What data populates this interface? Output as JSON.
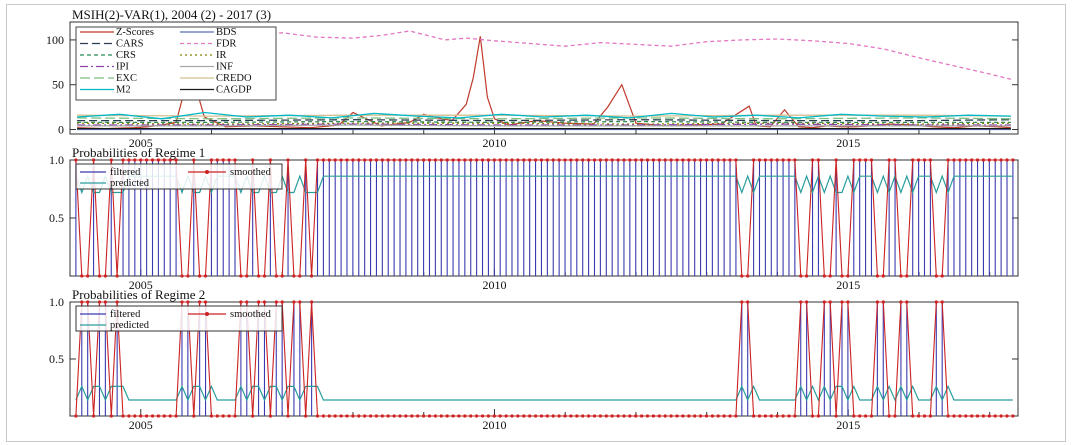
{
  "chart_data": [
    {
      "type": "line",
      "title": "MSIH(2)-VAR(1), 2004 (2) - 2017 (3)",
      "xlim": [
        2004.0,
        2017.4
      ],
      "ylim": [
        -5,
        120
      ],
      "yticks": [
        0,
        50,
        100
      ],
      "xticks": [
        2005,
        2010,
        2015
      ],
      "legend_position": "top-left",
      "series": [
        {
          "name": "Z-Scores",
          "color": "#c0392b",
          "dash": "",
          "x": [
            2004.1,
            2004.5,
            2004.9,
            2005.1,
            2005.3,
            2005.5,
            2005.7,
            2005.9,
            2006.2,
            2006.6,
            2007.0,
            2007.4,
            2007.8,
            2008.0,
            2008.4,
            2008.8,
            2009.0,
            2009.2,
            2009.4,
            2009.6,
            2009.7,
            2009.8,
            2009.9,
            2010.0,
            2010.2,
            2010.6,
            2011.0,
            2011.4,
            2011.6,
            2011.8,
            2012.0,
            2012.4,
            2012.8,
            2013.2,
            2013.6,
            2013.7,
            2013.9,
            2014.1,
            2014.3,
            2014.5,
            2014.7,
            2014.9,
            2015.1,
            2015.3,
            2015.6,
            2015.9,
            2016.2,
            2016.5,
            2016.8,
            2017.1,
            2017.3
          ],
          "y": [
            2,
            1,
            2,
            3,
            5,
            8,
            68,
            14,
            3,
            4,
            3,
            2,
            5,
            19,
            4,
            8,
            17,
            13,
            10,
            28,
            58,
            104,
            36,
            12,
            5,
            10,
            7,
            6,
            25,
            50,
            7,
            4,
            5,
            6,
            26,
            4,
            3,
            22,
            3,
            2,
            4,
            3,
            3,
            4,
            6,
            5,
            3,
            2,
            4,
            3,
            2
          ]
        },
        {
          "name": "BDS",
          "color": "#5b6fb0",
          "dash": "",
          "x": [
            2004.1,
            2006,
            2008,
            2010,
            2012,
            2014,
            2016,
            2017.3
          ],
          "y": [
            0,
            0,
            0,
            0,
            0,
            0,
            0,
            0
          ]
        },
        {
          "name": "CARS",
          "color": "#2c3e50",
          "dash": "8,4",
          "x": [
            2004.1,
            2006,
            2008,
            2010,
            2012,
            2014,
            2016,
            2017.3
          ],
          "y": [
            10,
            10,
            11,
            10,
            11,
            10,
            10,
            11
          ]
        },
        {
          "name": "FDR",
          "color": "#e377c2",
          "dash": "4,3",
          "x": [
            2004.1,
            2004.6,
            2005.0,
            2005.5,
            2006.0,
            2006.5,
            2007.0,
            2007.5,
            2008.0,
            2008.4,
            2008.8,
            2009.0,
            2009.3,
            2009.6,
            2010.0,
            2010.5,
            2011.0,
            2011.5,
            2012.0,
            2012.5,
            2013.0,
            2013.5,
            2014.0,
            2014.5,
            2015.0,
            2015.5,
            2016.0,
            2016.5,
            2017.0,
            2017.3
          ],
          "y": [
            108,
            102,
            104,
            101,
            106,
            104,
            108,
            103,
            102,
            105,
            110,
            106,
            100,
            102,
            99,
            96,
            93,
            97,
            95,
            93,
            98,
            100,
            101,
            99,
            96,
            90,
            80,
            71,
            62,
            56
          ]
        },
        {
          "name": "CRS",
          "color": "#2e8b57",
          "dash": "4,3",
          "x": [
            2004.1,
            2006,
            2008,
            2010,
            2012,
            2014,
            2016,
            2017.3
          ],
          "y": [
            8,
            8,
            9,
            8,
            9,
            8,
            8,
            8
          ]
        },
        {
          "name": "IR",
          "color": "#808000",
          "dash": "2,3",
          "x": [
            2004.1,
            2006,
            2008,
            2010,
            2012,
            2014,
            2016,
            2017.3
          ],
          "y": [
            7,
            6,
            7,
            7,
            6,
            7,
            6,
            7
          ]
        },
        {
          "name": "IPI",
          "color": "#8e44ad",
          "dash": "8,3,2,3",
          "x": [
            2004.1,
            2006,
            2008,
            2010,
            2012,
            2014,
            2016,
            2017.3
          ],
          "y": [
            5,
            5,
            6,
            5,
            5,
            6,
            5,
            5
          ]
        },
        {
          "name": "INF",
          "color": "#a9a9a9",
          "dash": "",
          "x": [
            2004.1,
            2006,
            2008,
            2010,
            2012,
            2014,
            2016,
            2017.3
          ],
          "y": [
            4,
            4,
            5,
            4,
            4,
            4,
            4,
            4
          ]
        },
        {
          "name": "EXC",
          "color": "#7fbf7f",
          "dash": "10,4",
          "x": [
            2004.1,
            2006,
            2008,
            2010,
            2012,
            2014,
            2016,
            2017.3
          ],
          "y": [
            13,
            12,
            13,
            12,
            13,
            12,
            13,
            12
          ]
        },
        {
          "name": "CREDO",
          "color": "#d4c090",
          "dash": "",
          "x": [
            2004.1,
            2006,
            2008,
            2010,
            2012,
            2014,
            2016,
            2017.3
          ],
          "y": [
            16,
            15,
            16,
            16,
            15,
            16,
            16,
            15
          ]
        },
        {
          "name": "M2",
          "color": "#00b8c8",
          "dash": "",
          "x": [
            2004.1,
            2004.7,
            2005.3,
            2005.9,
            2006.5,
            2007.1,
            2007.7,
            2008.3,
            2008.9,
            2009.5,
            2010.1,
            2010.7,
            2011.3,
            2011.9,
            2012.5,
            2013.1,
            2013.7,
            2014.3,
            2014.9,
            2015.5,
            2016.1,
            2016.7,
            2017.3
          ],
          "y": [
            14,
            17,
            12,
            19,
            14,
            16,
            13,
            18,
            15,
            13,
            17,
            14,
            16,
            13,
            18,
            14,
            16,
            13,
            17,
            15,
            14,
            16,
            15
          ]
        },
        {
          "name": "CAGDP",
          "color": "#1a1a1a",
          "dash": "",
          "x": [
            2004.1,
            2006,
            2008,
            2010,
            2012,
            2014,
            2016,
            2017.3
          ],
          "y": [
            1,
            1,
            1,
            1,
            1,
            1,
            1,
            1
          ]
        }
      ]
    },
    {
      "type": "line",
      "title": "Probabilities of Regime 1",
      "xlim": [
        2004.0,
        2017.4
      ],
      "ylim": [
        0,
        1.0
      ],
      "yticks": [
        0.5,
        1.0
      ],
      "ytick_labels": [
        "0.5",
        "1.0"
      ],
      "xticks": [
        2005,
        2010,
        2015
      ],
      "legend_position": "top-left",
      "x_start": 2004.0833,
      "x_step": 0.0833,
      "low_indices": [
        1,
        2,
        4,
        5,
        7,
        18,
        19,
        21,
        22,
        28,
        29,
        31,
        32,
        34,
        35,
        37,
        38,
        40,
        113,
        114,
        123,
        124,
        127,
        128,
        130,
        131,
        136,
        137,
        140,
        141,
        146,
        147
      ],
      "series": [
        {
          "name": "filtered",
          "color": "#3a3ab0",
          "style": "bars",
          "description_value": "regime 1 filtered probability per month"
        },
        {
          "name": "predicted",
          "color": "#2a9d9d",
          "style": "line"
        },
        {
          "name": "smoothed",
          "color": "#cc2222",
          "style": "line-markers"
        }
      ]
    },
    {
      "type": "line",
      "title": "Probabilities of Regime 2",
      "xlim": [
        2004.0,
        2017.4
      ],
      "ylim": [
        0,
        1.0
      ],
      "yticks": [
        0.5,
        1.0
      ],
      "ytick_labels": [
        "0.5",
        "1.0"
      ],
      "xticks": [
        2005,
        2010,
        2015
      ],
      "legend_position": "top-left",
      "series": [
        {
          "name": "filtered",
          "color": "#3a3ab0",
          "style": "bars"
        },
        {
          "name": "predicted",
          "color": "#2a9d9d",
          "style": "line"
        },
        {
          "name": "smoothed",
          "color": "#cc2222",
          "style": "line-markers"
        }
      ]
    }
  ]
}
